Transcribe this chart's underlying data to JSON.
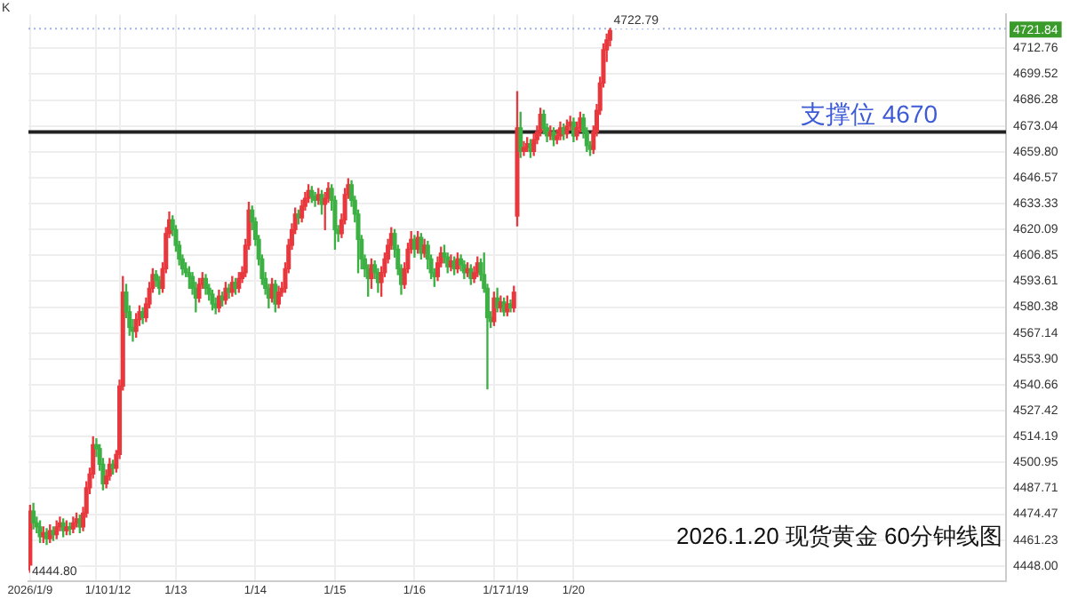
{
  "chart_data": {
    "type": "candlestick",
    "title": "2026.1.20 现货黄金 60分钟线图",
    "categories": [
      "2026/1/9",
      null,
      null,
      null,
      null,
      null,
      null,
      null,
      null,
      null,
      null,
      null,
      null,
      null,
      null,
      null,
      null,
      null,
      null,
      null,
      "1/10",
      null,
      null,
      null,
      null,
      null,
      null,
      "1/12",
      null,
      null,
      null,
      null,
      null,
      null,
      null,
      null,
      null,
      null,
      null,
      null,
      null,
      null,
      null,
      null,
      "1/13",
      null,
      null,
      null,
      null,
      null,
      null,
      null,
      null,
      null,
      null,
      null,
      null,
      null,
      null,
      null,
      null,
      null,
      null,
      null,
      null,
      null,
      null,
      null,
      "1/14",
      null,
      null,
      null,
      null,
      null,
      null,
      null,
      null,
      null,
      null,
      null,
      null,
      null,
      null,
      null,
      null,
      null,
      null,
      null,
      null,
      null,
      null,
      null,
      "1/15",
      null,
      null,
      null,
      null,
      null,
      null,
      null,
      null,
      null,
      null,
      null,
      null,
      null,
      null,
      null,
      null,
      null,
      null,
      null,
      null,
      null,
      null,
      null,
      "1/16",
      null,
      null,
      null,
      null,
      null,
      null,
      null,
      null,
      null,
      null,
      null,
      null,
      null,
      null,
      null,
      null,
      null,
      null,
      null,
      null,
      null,
      null,
      null,
      "1/17",
      null,
      null,
      null,
      null,
      null,
      null,
      "1/19",
      null,
      null,
      null,
      null,
      null,
      null,
      null,
      null,
      null,
      null,
      null,
      null,
      null,
      null,
      null,
      null,
      "1/20",
      null,
      null,
      null,
      null,
      null,
      null,
      null,
      null,
      null,
      null,
      null,
      null,
      null,
      null,
      null,
      null,
      null,
      null,
      null,
      null,
      null,
      null,
      null,
      null,
      null,
      null,
      null,
      null,
      null,
      null,
      null,
      null,
      null,
      null,
      null,
      null,
      null,
      null,
      null,
      null,
      null,
      null,
      null,
      null,
      null,
      null,
      null,
      null,
      null,
      null,
      null,
      null,
      null,
      null,
      null,
      null,
      null,
      null,
      null,
      null,
      null,
      null,
      null,
      null,
      null,
      null,
      null,
      null,
      null,
      null,
      null,
      null,
      null,
      null,
      null,
      null,
      null,
      null,
      null,
      null,
      null,
      null,
      null,
      null,
      null,
      null,
      null,
      null,
      null,
      null,
      null,
      null,
      null,
      null,
      null,
      null,
      null,
      null,
      null,
      null,
      null,
      null,
      null,
      null,
      null,
      null,
      null,
      null,
      null,
      null,
      null,
      null,
      null,
      null,
      null,
      null,
      null,
      null,
      null,
      null,
      null,
      null,
      null,
      null,
      null,
      null,
      null,
      null,
      null,
      null
    ],
    "ohlc": [
      [
        4446,
        4479,
        4444.8,
        4476
      ],
      [
        4476,
        4480,
        4467,
        4470
      ],
      [
        4470,
        4473,
        4465,
        4468
      ],
      [
        4468,
        4471,
        4460,
        4463
      ],
      [
        4463,
        4468,
        4460,
        4465
      ],
      [
        4465,
        4467,
        4459,
        4462
      ],
      [
        4462,
        4469,
        4460,
        4466
      ],
      [
        4466,
        4468,
        4461,
        4464
      ],
      [
        4464,
        4471,
        4462,
        4468
      ],
      [
        4468,
        4473,
        4466,
        4470
      ],
      [
        4470,
        4472,
        4463,
        4466
      ],
      [
        4466,
        4471,
        4464,
        4468
      ],
      [
        4468,
        4470,
        4464,
        4467
      ],
      [
        4467,
        4473,
        4465,
        4470
      ],
      [
        4470,
        4475,
        4468,
        4472
      ],
      [
        4472,
        4474,
        4465,
        4468
      ],
      [
        4468,
        4478,
        4466,
        4475
      ],
      [
        4475,
        4491,
        4473,
        4488
      ],
      [
        4488,
        4498,
        4485,
        4495
      ],
      [
        4495,
        4514,
        4493,
        4510
      ],
      [
        4510,
        4513,
        4504,
        4508
      ],
      [
        4508,
        4510,
        4497,
        4500
      ],
      [
        4500,
        4503,
        4487,
        4490
      ],
      [
        4490,
        4497,
        4488,
        4494
      ],
      [
        4494,
        4503,
        4492,
        4500
      ],
      [
        4500,
        4502,
        4495,
        4498
      ],
      [
        4498,
        4507,
        4496,
        4505
      ],
      [
        4505,
        4543,
        4503,
        4540
      ],
      [
        4540,
        4596,
        4538,
        4588
      ],
      [
        4588,
        4592,
        4575,
        4578
      ],
      [
        4578,
        4581,
        4566,
        4570
      ],
      [
        4570,
        4574,
        4563,
        4568
      ],
      [
        4568,
        4577,
        4565,
        4574
      ],
      [
        4574,
        4581,
        4571,
        4578
      ],
      [
        4578,
        4580,
        4572,
        4575
      ],
      [
        4575,
        4585,
        4573,
        4582
      ],
      [
        4582,
        4593,
        4580,
        4590
      ],
      [
        4590,
        4600,
        4588,
        4597
      ],
      [
        4597,
        4599,
        4591,
        4594
      ],
      [
        4594,
        4596,
        4587,
        4590
      ],
      [
        4590,
        4603,
        4588,
        4600
      ],
      [
        4600,
        4621,
        4598,
        4618
      ],
      [
        4618,
        4629,
        4616,
        4625
      ],
      [
        4625,
        4627,
        4617,
        4620
      ],
      [
        4620,
        4622,
        4609,
        4612
      ],
      [
        4612,
        4614,
        4602,
        4605
      ],
      [
        4605,
        4607,
        4597,
        4600
      ],
      [
        4600,
        4603,
        4596,
        4598
      ],
      [
        4598,
        4601,
        4590,
        4596
      ],
      [
        4596,
        4598,
        4587,
        4590
      ],
      [
        4590,
        4593,
        4578,
        4585
      ],
      [
        4585,
        4595,
        4583,
        4592
      ],
      [
        4592,
        4598,
        4590,
        4595
      ],
      [
        4595,
        4597,
        4587,
        4590
      ],
      [
        4590,
        4592,
        4584,
        4587
      ],
      [
        4587,
        4589,
        4579,
        4582
      ],
      [
        4582,
        4585,
        4577,
        4580
      ],
      [
        4580,
        4589,
        4578,
        4586
      ],
      [
        4586,
        4588,
        4581,
        4584
      ],
      [
        4584,
        4593,
        4582,
        4590
      ],
      [
        4590,
        4592,
        4585,
        4588
      ],
      [
        4588,
        4596,
        4586,
        4593
      ],
      [
        4593,
        4595,
        4587,
        4590
      ],
      [
        4590,
        4598,
        4588,
        4595
      ],
      [
        4595,
        4601,
        4593,
        4598
      ],
      [
        4598,
        4615,
        4596,
        4612
      ],
      [
        4612,
        4634,
        4610,
        4630
      ],
      [
        4630,
        4632,
        4620,
        4624
      ],
      [
        4624,
        4626,
        4612,
        4615
      ],
      [
        4615,
        4617,
        4602,
        4605
      ],
      [
        4605,
        4607,
        4592,
        4595
      ],
      [
        4595,
        4598,
        4587,
        4590
      ],
      [
        4590,
        4592,
        4580,
        4585
      ],
      [
        4585,
        4595,
        4583,
        4592
      ],
      [
        4592,
        4594,
        4578,
        4582
      ],
      [
        4582,
        4591,
        4580,
        4588
      ],
      [
        4588,
        4593,
        4586,
        4590
      ],
      [
        4590,
        4603,
        4588,
        4600
      ],
      [
        4600,
        4615,
        4598,
        4612
      ],
      [
        4612,
        4623,
        4610,
        4620
      ],
      [
        4620,
        4631,
        4618,
        4628
      ],
      [
        4628,
        4630,
        4623,
        4626
      ],
      [
        4626,
        4635,
        4624,
        4632
      ],
      [
        4632,
        4639,
        4630,
        4636
      ],
      [
        4636,
        4643,
        4634,
        4640
      ],
      [
        4640,
        4642,
        4634,
        4637
      ],
      [
        4637,
        4639,
        4632,
        4635
      ],
      [
        4635,
        4641,
        4633,
        4638
      ],
      [
        4638,
        4640,
        4628,
        4633
      ],
      [
        4633,
        4639,
        4620,
        4636
      ],
      [
        4636,
        4644,
        4634,
        4641
      ],
      [
        4641,
        4643,
        4630,
        4635
      ],
      [
        4635,
        4637,
        4610,
        4620
      ],
      [
        4620,
        4622,
        4614,
        4618
      ],
      [
        4618,
        4628,
        4616,
        4625
      ],
      [
        4625,
        4641,
        4623,
        4638
      ],
      [
        4638,
        4646,
        4636,
        4643
      ],
      [
        4643,
        4645,
        4632,
        4635
      ],
      [
        4635,
        4637,
        4624,
        4628
      ],
      [
        4628,
        4630,
        4598,
        4615
      ],
      [
        4615,
        4617,
        4600,
        4605
      ],
      [
        4605,
        4607,
        4596,
        4600
      ],
      [
        4600,
        4602,
        4586,
        4595
      ],
      [
        4595,
        4605,
        4590,
        4602
      ],
      [
        4602,
        4604,
        4595,
        4598
      ],
      [
        4598,
        4600,
        4588,
        4593
      ],
      [
        4593,
        4601,
        4586,
        4598
      ],
      [
        4598,
        4608,
        4596,
        4605
      ],
      [
        4605,
        4615,
        4603,
        4612
      ],
      [
        4612,
        4621,
        4610,
        4618
      ],
      [
        4618,
        4620,
        4606,
        4610
      ],
      [
        4610,
        4612,
        4597,
        4600
      ],
      [
        4600,
        4602,
        4587,
        4592
      ],
      [
        4592,
        4603,
        4590,
        4600
      ],
      [
        4600,
        4613,
        4598,
        4610
      ],
      [
        4610,
        4619,
        4608,
        4615
      ],
      [
        4615,
        4617,
        4606,
        4610
      ],
      [
        4610,
        4619,
        4608,
        4616
      ],
      [
        4616,
        4618,
        4605,
        4608
      ],
      [
        4608,
        4615,
        4606,
        4612
      ],
      [
        4612,
        4614,
        4600,
        4605
      ],
      [
        4605,
        4607,
        4595,
        4598
      ],
      [
        4598,
        4600,
        4591,
        4596
      ],
      [
        4596,
        4606,
        4594,
        4603
      ],
      [
        4603,
        4611,
        4601,
        4608
      ],
      [
        4608,
        4612,
        4603,
        4606
      ],
      [
        4606,
        4608,
        4598,
        4601
      ],
      [
        4601,
        4607,
        4599,
        4604
      ],
      [
        4604,
        4606,
        4597,
        4600
      ],
      [
        4600,
        4608,
        4598,
        4605
      ],
      [
        4605,
        4607,
        4599,
        4602
      ],
      [
        4602,
        4604,
        4595,
        4598
      ],
      [
        4598,
        4603,
        4596,
        4600
      ],
      [
        4600,
        4602,
        4592,
        4595
      ],
      [
        4595,
        4601,
        4593,
        4598
      ],
      [
        4598,
        4606,
        4596,
        4603
      ],
      [
        4603,
        4605,
        4594,
        4597
      ],
      [
        4597,
        4608,
        4588,
        4590
      ],
      [
        4590,
        4592,
        4538.6,
        4575
      ],
      [
        4575,
        4578,
        4570,
        4573
      ],
      [
        4573,
        4588,
        4571,
        4585
      ],
      [
        4585,
        4590,
        4578,
        4580
      ],
      [
        4580,
        4586,
        4578,
        4583
      ],
      [
        4583,
        4585,
        4576,
        4578
      ],
      [
        4578,
        4586,
        4576,
        4582
      ],
      [
        4582,
        4584,
        4578,
        4580
      ],
      [
        4580,
        4591,
        4578,
        4588
      ],
      [
        4627,
        4690.6,
        4622,
        4672
      ],
      [
        4672,
        4680,
        4657,
        4660
      ],
      [
        4660,
        4665,
        4658,
        4662
      ],
      [
        4662,
        4667,
        4660,
        4664
      ],
      [
        4664,
        4666,
        4657,
        4660
      ],
      [
        4660,
        4669,
        4658,
        4666
      ],
      [
        4666,
        4673,
        4664,
        4670
      ],
      [
        4670,
        4682,
        4668,
        4679
      ],
      [
        4679,
        4681,
        4669,
        4672
      ],
      [
        4672,
        4674,
        4665,
        4668
      ],
      [
        4668,
        4673,
        4666,
        4670
      ],
      [
        4670,
        4672,
        4663,
        4666
      ],
      [
        4666,
        4671,
        4664,
        4668
      ],
      [
        4668,
        4675,
        4666,
        4672
      ],
      [
        4672,
        4674,
        4666,
        4669
      ],
      [
        4669,
        4676,
        4667,
        4673
      ],
      [
        4673,
        4678,
        4671,
        4675
      ],
      [
        4675,
        4677,
        4665,
        4668
      ],
      [
        4668,
        4675,
        4666,
        4672
      ],
      [
        4672,
        4680,
        4670,
        4677
      ],
      [
        4677,
        4679,
        4667,
        4670
      ],
      [
        4670,
        4672,
        4660,
        4663
      ],
      [
        4663,
        4665,
        4658,
        4661
      ],
      [
        4661,
        4673,
        4659,
        4670
      ],
      [
        4670,
        4684,
        4668,
        4681
      ],
      [
        4681,
        4698,
        4679,
        4695
      ],
      [
        4695,
        4715,
        4693,
        4712
      ],
      [
        4712,
        4720,
        4706,
        4717
      ],
      [
        4717,
        4722.79,
        4714,
        4721.84
      ],
      null,
      null,
      null,
      null,
      null,
      null,
      null,
      null,
      null,
      null,
      null,
      null,
      null,
      null,
      null,
      null,
      null,
      null,
      null,
      null,
      null,
      null,
      null,
      null,
      null,
      null,
      null,
      null,
      null,
      null,
      null,
      null,
      null,
      null,
      null,
      null,
      null,
      null,
      null,
      null,
      null,
      null,
      null,
      null,
      null,
      null,
      null,
      null,
      null,
      null,
      null,
      null,
      null,
      null,
      null,
      null,
      null,
      null,
      null,
      null,
      null,
      null,
      null,
      null,
      null,
      null,
      null,
      null,
      null,
      null,
      null,
      null,
      null,
      null,
      null,
      null,
      null,
      null,
      null,
      null,
      null,
      null,
      null,
      null,
      null,
      null,
      null,
      null,
      null,
      null,
      null,
      null,
      null,
      null,
      null,
      null,
      null,
      null,
      null,
      null,
      null,
      null,
      null,
      null,
      null,
      null,
      null,
      null,
      null,
      null,
      null,
      null,
      null,
      null,
      null,
      null,
      null,
      null,
      null
    ],
    "colors": [
      "#e8383d",
      "#3cb043",
      "#3cb043",
      "#3cb043",
      "#e8383d",
      "#3cb043",
      "#e8383d",
      "#3cb043",
      "#e8383d",
      "#e8383d",
      "#3cb043",
      "#e8383d",
      "#3cb043",
      "#e8383d",
      "#e8383d",
      "#3cb043",
      "#e8383d",
      "#e8383d",
      "#e8383d",
      "#e8383d",
      "#3cb043",
      "#3cb043",
      "#3cb043",
      "#e8383d",
      "#e8383d",
      "#3cb043",
      "#e8383d",
      "#e8383d",
      "#e8383d",
      "#3cb043",
      "#3cb043",
      "#3cb043",
      "#e8383d",
      "#e8383d",
      "#3cb043",
      "#e8383d",
      "#e8383d",
      "#e8383d",
      "#3cb043",
      "#3cb043",
      "#e8383d",
      "#e8383d",
      "#e8383d",
      "#3cb043",
      "#3cb043",
      "#3cb043",
      "#3cb043",
      "#3cb043",
      "#3cb043",
      "#3cb043",
      "#3cb043",
      "#e8383d",
      "#e8383d",
      "#3cb043",
      "#3cb043",
      "#3cb043",
      "#3cb043",
      "#e8383d",
      "#3cb043",
      "#e8383d",
      "#3cb043",
      "#e8383d",
      "#3cb043",
      "#e8383d",
      "#e8383d",
      "#e8383d",
      "#e8383d",
      "#3cb043",
      "#3cb043",
      "#3cb043",
      "#3cb043",
      "#3cb043",
      "#3cb043",
      "#e8383d",
      "#3cb043",
      "#e8383d",
      "#e8383d",
      "#e8383d",
      "#e8383d",
      "#e8383d",
      "#e8383d",
      "#3cb043",
      "#e8383d",
      "#e8383d",
      "#e8383d",
      "#3cb043",
      "#3cb043",
      "#e8383d",
      "#3cb043",
      "#e8383d",
      "#e8383d",
      "#3cb043",
      "#3cb043",
      "#3cb043",
      "#e8383d",
      "#e8383d",
      "#e8383d",
      "#3cb043",
      "#3cb043",
      "#3cb043",
      "#3cb043",
      "#3cb043",
      "#3cb043",
      "#e8383d",
      "#3cb043",
      "#3cb043",
      "#e8383d",
      "#e8383d",
      "#e8383d",
      "#e8383d",
      "#3cb043",
      "#3cb043",
      "#3cb043",
      "#e8383d",
      "#e8383d",
      "#e8383d",
      "#3cb043",
      "#e8383d",
      "#3cb043",
      "#e8383d",
      "#3cb043",
      "#3cb043",
      "#3cb043",
      "#e8383d",
      "#e8383d",
      "#3cb043",
      "#3cb043",
      "#e8383d",
      "#3cb043",
      "#e8383d",
      "#3cb043",
      "#3cb043",
      "#e8383d",
      "#3cb043",
      "#e8383d",
      "#e8383d",
      "#3cb043",
      "#3cb043",
      "#3cb043",
      "#3cb043",
      "#e8383d",
      "#3cb043",
      "#e8383d",
      "#3cb043",
      "#e8383d",
      "#3cb043",
      "#e8383d",
      "#e8383d",
      "#3cb043",
      "#e8383d",
      "#e8383d",
      "#3cb043",
      "#e8383d",
      "#e8383d",
      "#e8383d",
      "#3cb043",
      "#3cb043",
      "#e8383d",
      "#3cb043",
      "#e8383d",
      "#e8383d",
      "#3cb043",
      "#e8383d",
      "#e8383d",
      "#3cb043",
      "#e8383d",
      "#e8383d",
      "#3cb043",
      "#3cb043",
      "#3cb043",
      "#e8383d",
      "#e8383d",
      "#e8383d",
      "#e8383d",
      "#e8383d",
      "#e8383d",
      null,
      null,
      null,
      null,
      null,
      null,
      null,
      null,
      null,
      null,
      null,
      null,
      null,
      null,
      null,
      null,
      null,
      null,
      null,
      null,
      null,
      null,
      null,
      null,
      null,
      null,
      null,
      null,
      null,
      null,
      null,
      null,
      null,
      null,
      null,
      null,
      null,
      null,
      null,
      null,
      null,
      null,
      null,
      null,
      null,
      null,
      null,
      null,
      null,
      null,
      null,
      null,
      null,
      null,
      null,
      null,
      null,
      null,
      null,
      null,
      null,
      null,
      null,
      null,
      null,
      null,
      null,
      null,
      null,
      null,
      null,
      null,
      null,
      null,
      null,
      null,
      null,
      null,
      null,
      null,
      null,
      null,
      null,
      null,
      null,
      null,
      null,
      null,
      null,
      null,
      null,
      null,
      null,
      null,
      null,
      null,
      null,
      null,
      null,
      null,
      null,
      null,
      null,
      null,
      null,
      null,
      null,
      null,
      null,
      null,
      null,
      null,
      null,
      null,
      null,
      null,
      null,
      null,
      null
    ],
    "ylim": [
      4440,
      4730
    ],
    "yticks": [
      {
        "value": 4448,
        "label": "4448.00"
      },
      4461.23,
      4474.47,
      4487.71,
      {
        "value": 4500.95,
        "label": "4500.95"
      },
      4514.19,
      4527.42,
      4540.66,
      {
        "value": 4553.9,
        "label": "4553.90"
      },
      4567.14,
      4580.38,
      4593.61,
      4606.85,
      4620.09,
      4633.33,
      4646.57,
      {
        "value": 4659.8,
        "label": "4659.80"
      },
      4673.04,
      4686.28,
      4699.52,
      4712.76
    ],
    "grid": true,
    "ref_lines": [
      {
        "axis": "y",
        "value": 4670,
        "label": "支撑位 4670",
        "color": "#222222",
        "line_style": "solid"
      },
      {
        "axis": "y",
        "value": 4722.79,
        "color": "#9fb3e6",
        "line_style": "dotted"
      }
    ],
    "annotations": [
      "K",
      {
        "text": "4722.79",
        "y": 4722.79
      },
      "4444.80",
      {
        "text": "4721.84",
        "y": 4721.84
      }
    ],
    "legend": false
  }
}
